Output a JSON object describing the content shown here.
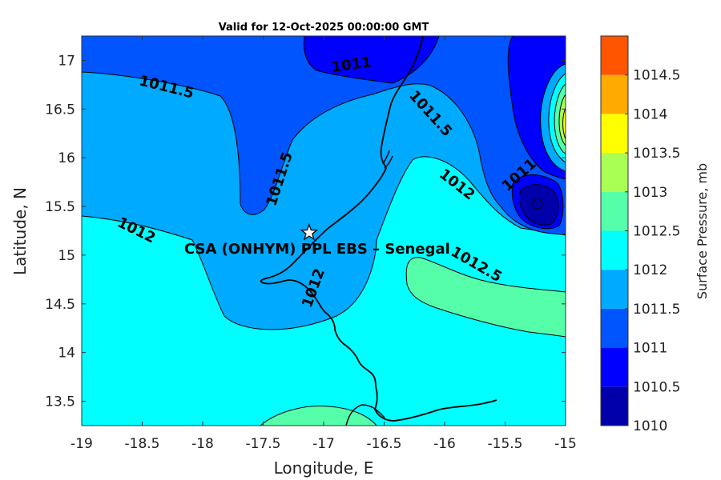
{
  "map": {
    "title": "Valid for 12-Oct-2025 00:00:00 GMT",
    "xlabel": "Longitude, E",
    "ylabel": "Latitude, N",
    "xlim": [
      -19,
      -15
    ],
    "ylim": [
      13.25,
      17.25
    ],
    "xticks": [
      -19,
      -18.5,
      -18,
      -17.5,
      -17,
      -16.5,
      -16,
      -15.5,
      -15
    ],
    "xtick_labels": [
      "-19",
      "-18.5",
      "-18",
      "-17.5",
      "-17",
      "-16.5",
      "-16",
      "-15.5",
      "-15"
    ],
    "yticks": [
      13.5,
      14,
      14.5,
      15,
      15.5,
      16,
      16.5,
      17
    ],
    "ytick_labels": [
      "13.5",
      "14",
      "14.5",
      "15",
      "15.5",
      "16",
      "16.5",
      "17"
    ],
    "site": {
      "label": "CSA (ONHYM) PPL EBS  – Senegal",
      "lon": -17.12,
      "lat": 15.23,
      "marker": "star-icon"
    },
    "contour_labels": [
      {
        "text": "1011",
        "lon": -16.77,
        "lat": 16.95,
        "angle": -8
      },
      {
        "text": "1011.5",
        "lon": -18.3,
        "lat": 16.72,
        "angle": 14
      },
      {
        "text": "1011.5",
        "lon": -16.12,
        "lat": 16.45,
        "angle": 48
      },
      {
        "text": "1011.5",
        "lon": -17.36,
        "lat": 15.78,
        "angle": -72
      },
      {
        "text": "1012",
        "lon": -15.9,
        "lat": 15.72,
        "angle": 38
      },
      {
        "text": "1011",
        "lon": -15.38,
        "lat": 15.82,
        "angle": -42
      },
      {
        "text": "1012",
        "lon": -18.55,
        "lat": 15.25,
        "angle": 26
      },
      {
        "text": "1012.5",
        "lon": -15.74,
        "lat": 14.9,
        "angle": 30
      },
      {
        "text": "1012",
        "lon": -17.08,
        "lat": 14.66,
        "angle": -70
      }
    ]
  },
  "colorbar": {
    "label": "Surface Pressure, mb",
    "levels": [
      1010,
      1010.5,
      1011,
      1011.5,
      1012,
      1012.5,
      1013,
      1013.5,
      1014,
      1014.5
    ],
    "tick_labels": [
      "1010",
      "1010.5",
      "1011",
      "1011.5",
      "1012",
      "1012.5",
      "1013",
      "1013.5",
      "1014",
      "1014.5"
    ],
    "colors": [
      "#0000aa",
      "#0000ff",
      "#0055ff",
      "#00aaff",
      "#00ffff",
      "#55ffaa",
      "#aaff55",
      "#ffff00",
      "#ffaa00",
      "#ff5500"
    ]
  },
  "chart_data": {
    "type": "heatmap",
    "title": "Valid for 12-Oct-2025 00:00:00 GMT",
    "xlabel": "Longitude, E",
    "ylabel": "Latitude, N",
    "xlim": [
      -19,
      -15
    ],
    "ylim": [
      13.25,
      17.25
    ],
    "colorbar_label": "Surface Pressure, mb",
    "color_levels": [
      1010,
      1010.5,
      1011,
      1011.5,
      1012,
      1012.5,
      1013,
      1013.5,
      1014,
      1014.5
    ],
    "contour_values": [
      1011,
      1011.5,
      1012,
      1012.5
    ],
    "regions": [
      {
        "value_range": [
          1011,
          1011.5
        ],
        "location": "north-central near 17N, -17 to -16.3E"
      },
      {
        "value_range": [
          1011,
          1011.5
        ],
        "location": "east near -15.4E, 15.5-16.2N"
      },
      {
        "value_range": [
          1011.5,
          1012
        ],
        "location": "northwest and central band"
      },
      {
        "value_range": [
          1012,
          1012.5
        ],
        "location": "south and southwest"
      },
      {
        "value_range": [
          1012.5,
          1013
        ],
        "location": "southeast near -16E, 14.6N and bottom near -17E, 13.3N"
      },
      {
        "value_range": [
          1013,
          1014
        ],
        "location": "far east edge near -15.05E, 16.2N"
      }
    ],
    "grid": false
  }
}
